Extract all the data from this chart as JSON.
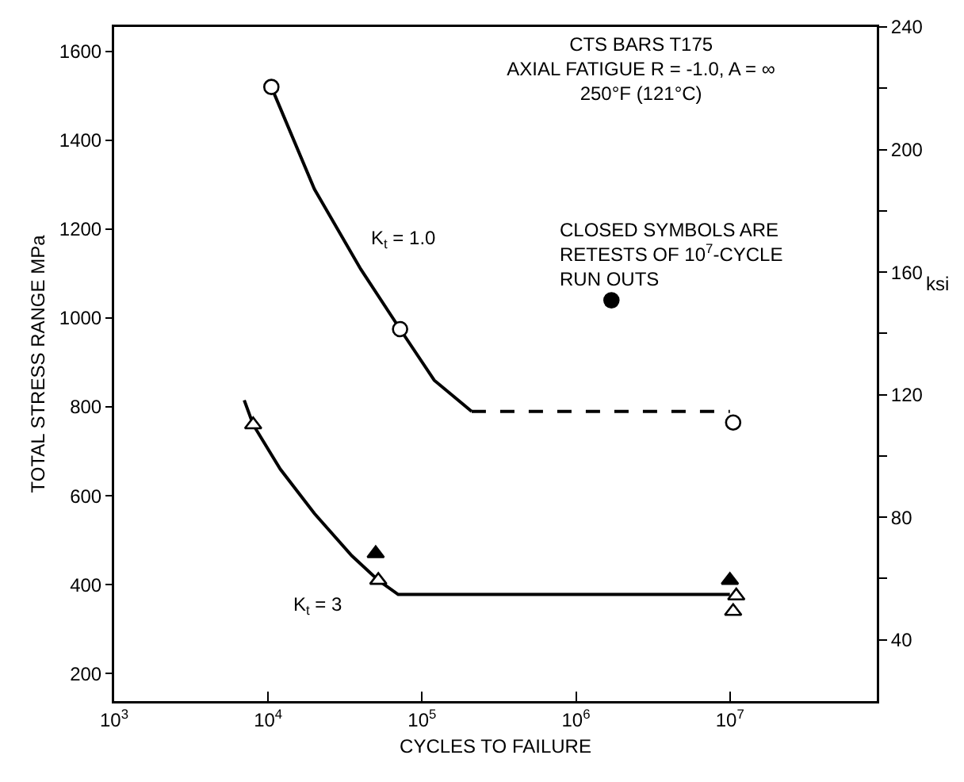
{
  "chart_data": {
    "type": "line",
    "title": "CTS BARS T175\nAXIAL FATIGUE R = -1.0, A = ∞\n250°F (121°C)",
    "xlabel": "CYCLES TO FAILURE",
    "ylabel": "TOTAL STRESS RANGE MPa",
    "y2label": "ksi",
    "annotations": [
      "CLOSED SYMBOLS ARE\nRETESTS OF 10$^{7}$-CYCLE\nRUN OUTS"
    ],
    "log": "x",
    "grid": false,
    "legend": false,
    "xlim": [
      1000,
      90000000
    ],
    "xticks": [
      {
        "value": 1000,
        "label": "10$^{3}$"
      },
      {
        "value": 10000,
        "label": "10$^{4}$"
      },
      {
        "value": 100000,
        "label": "10$^{5}$"
      },
      {
        "value": 1000000,
        "label": "10$^{6}$"
      },
      {
        "value": 10000000,
        "label": "10$^{7}$"
      }
    ],
    "ylim": [
      138,
      1655
    ],
    "yticks": [
      200,
      400,
      600,
      800,
      1000,
      1200,
      1400,
      1600
    ],
    "y2lim": [
      20,
      240
    ],
    "y2ticks": [
      40,
      {
        "value": 60,
        "label": null
      },
      80,
      {
        "value": 100,
        "label": null
      },
      120,
      {
        "value": 140,
        "label": null
      },
      160,
      {
        "value": 180,
        "label": null
      },
      200,
      {
        "value": 220,
        "label": null
      },
      240
    ],
    "series": [
      {
        "name": "K$_{t}$ = 1.0",
        "color": "#000000",
        "marker": "none",
        "line_style": "solid",
        "x": [
          10500,
          20000,
          40000,
          72000,
          120000,
          210000
        ],
        "values": [
          1520,
          1290,
          1110,
          975,
          860,
          790
        ]
      },
      {
        "color": "#000000",
        "marker": "none",
        "line_style": "dashed",
        "x": [
          210000,
          10000000
        ],
        "values": [
          790,
          790
        ]
      },
      {
        "name": "K$_{t}$ = 3",
        "color": "#000000",
        "marker": "none",
        "line_style": "solid",
        "x": [
          7000,
          8000,
          12000,
          20000,
          35000,
          52000,
          70000,
          10000000
        ],
        "values": [
          815,
          760,
          660,
          560,
          465,
          410,
          378,
          378
        ]
      },
      {
        "type": "scatter",
        "color": "#ffffff",
        "marker": "circle",
        "x": [
          10500,
          72000,
          10500000
        ],
        "values": [
          1520,
          975,
          765
        ]
      },
      {
        "type": "scatter",
        "color": "#000000",
        "marker": "circle",
        "x": [
          1700000
        ],
        "values": [
          1040
        ]
      },
      {
        "type": "scatter",
        "color": "#ffffff",
        "marker": "triangle",
        "x": [
          8000,
          52000,
          11000000,
          10500000
        ],
        "values": [
          760,
          410,
          375,
          340
        ]
      },
      {
        "type": "scatter",
        "color": "#000000",
        "marker": "triangle",
        "x": [
          50000,
          10000000
        ],
        "values": [
          470,
          410
        ]
      }
    ]
  }
}
